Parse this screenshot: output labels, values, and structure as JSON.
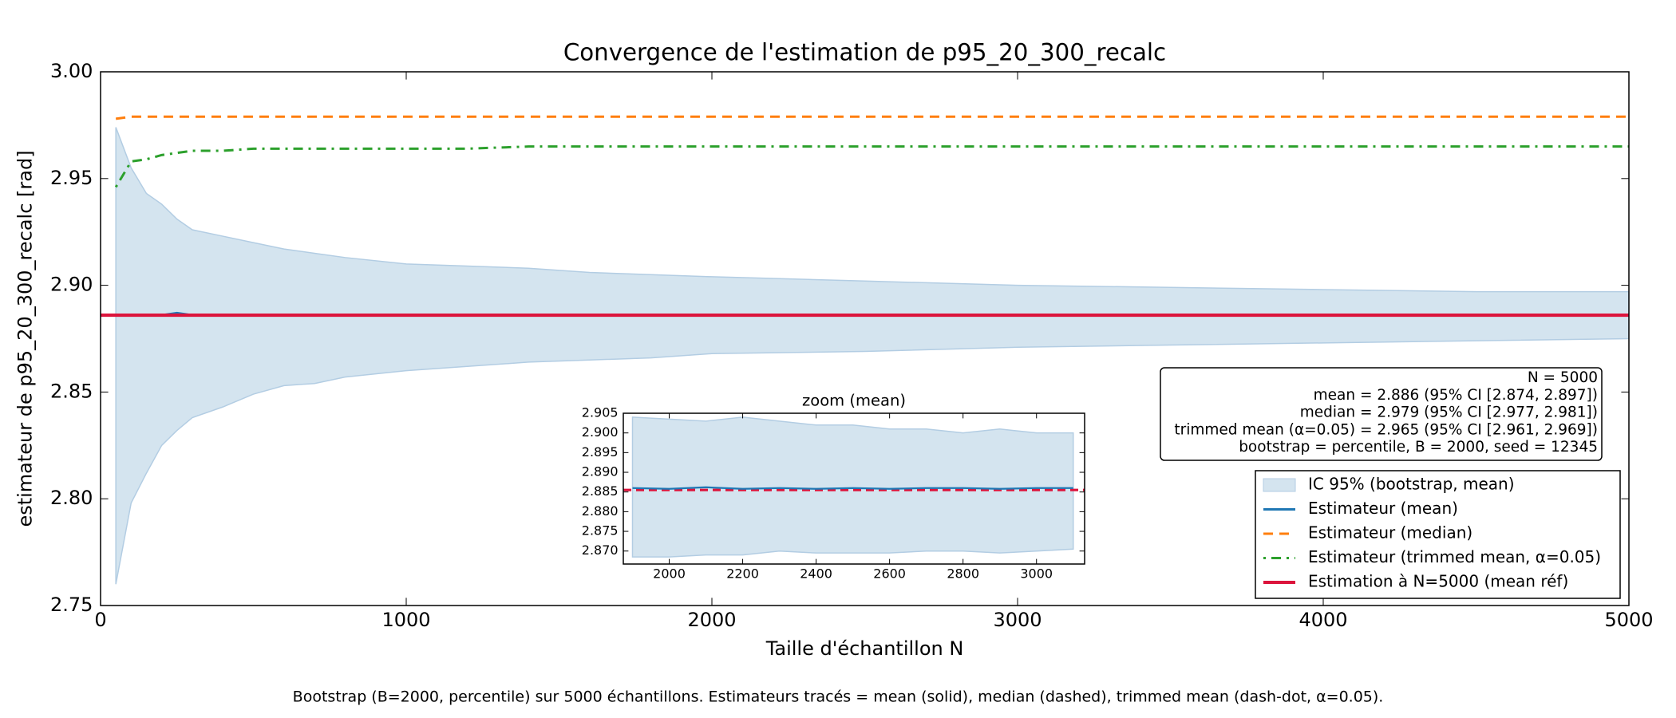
{
  "chart_data": [
    {
      "type": "line",
      "title": "Convergence de l'estimation de p95_20_300_recalc",
      "xlabel": "Taille d'échantillon N",
      "ylabel": "estimateur de p95_20_300_recalc [rad]",
      "xlim": [
        0,
        5000
      ],
      "ylim": [
        2.75,
        3.0
      ],
      "xticks": [
        0,
        1000,
        2000,
        3000,
        4000,
        5000
      ],
      "yticks": [
        {
          "value": 3.0,
          "label": "3.00"
        },
        2.95,
        {
          "value": 2.9,
          "label": "2.90"
        },
        2.85,
        {
          "value": 2.8,
          "label": "2.80"
        },
        2.75
      ],
      "x": [
        50,
        100,
        150,
        200,
        250,
        300,
        400,
        500,
        600,
        700,
        800,
        1000,
        1200,
        1400,
        1600,
        1800,
        2000,
        2500,
        3000,
        3500,
        4000,
        4500,
        5000
      ],
      "series": [
        {
          "name": "IC 95% (bootstrap, mean)",
          "color": "#d4e4ef",
          "style": "band",
          "values": [
            2.974,
            2.955,
            2.943,
            2.938,
            2.931,
            2.926,
            2.923,
            2.92,
            2.917,
            2.915,
            2.913,
            2.91,
            2.909,
            2.908,
            2.906,
            2.905,
            2.904,
            2.902,
            2.9,
            2.899,
            2.898,
            2.897,
            2.897
          ],
          "lower": [
            2.76,
            2.798,
            2.812,
            2.825,
            2.832,
            2.838,
            2.843,
            2.849,
            2.853,
            2.854,
            2.857,
            2.86,
            2.862,
            2.864,
            2.865,
            2.866,
            2.868,
            2.869,
            2.871,
            2.872,
            2.873,
            2.874,
            2.875
          ]
        },
        {
          "name": "Estimateur (mean)",
          "color": "#1f77b4",
          "style": "solid",
          "values": [
            2.886,
            2.886,
            2.886,
            2.886,
            2.887,
            2.886,
            2.886,
            2.886,
            2.886,
            2.886,
            2.886,
            2.886,
            2.886,
            2.886,
            2.886,
            2.886,
            2.886,
            2.886,
            2.886,
            2.886,
            2.886,
            2.886,
            2.886
          ]
        },
        {
          "name": "Estimateur (median)",
          "color": "#ff7f0e",
          "style": "dashed",
          "values": [
            2.978,
            2.979,
            2.979,
            2.979,
            2.979,
            2.979,
            2.979,
            2.979,
            2.979,
            2.979,
            2.979,
            2.979,
            2.979,
            2.979,
            2.979,
            2.979,
            2.979,
            2.979,
            2.979,
            2.979,
            2.979,
            2.979,
            2.979
          ]
        },
        {
          "name": "Estimateur (trimmed mean, α=0.05)",
          "color": "#2ca02c",
          "style": "dashdot",
          "values": [
            2.946,
            2.958,
            2.959,
            2.961,
            2.962,
            2.963,
            2.963,
            2.964,
            2.964,
            2.964,
            2.964,
            2.964,
            2.964,
            2.965,
            2.965,
            2.965,
            2.965,
            2.965,
            2.965,
            2.965,
            2.965,
            2.965,
            2.965
          ]
        },
        {
          "name": "Estimation à N=5000 (mean réf)",
          "color": "#dc143c",
          "style": "hline",
          "value": 2.886
        }
      ],
      "annotation": [
        "N = 5000",
        "mean = 2.886  (95% CI [2.874, 2.897])",
        "median = 2.979  (95% CI [2.977, 2.981])",
        "trimmed mean (α=0.05) = 2.965  (95% CI [2.961, 2.969])",
        "bootstrap = percentile, B = 2000, seed = 12345"
      ]
    },
    {
      "type": "line",
      "title": "zoom (mean)",
      "xlim": [
        1875,
        3131
      ],
      "ylim": [
        2.8667,
        2.905
      ],
      "xticks": [
        2000,
        2200,
        2400,
        2600,
        2800,
        3000
      ],
      "yticks": [
        2.905,
        {
          "value": 2.9,
          "label": "2.900"
        },
        2.895,
        {
          "value": 2.89,
          "label": "2.890"
        },
        2.885,
        {
          "value": 2.88,
          "label": "2.880"
        },
        2.875,
        {
          "value": 2.87,
          "label": "2.870"
        }
      ],
      "x": [
        1900,
        2000,
        2100,
        2200,
        2300,
        2400,
        2500,
        2600,
        2700,
        2800,
        2900,
        3000,
        3100
      ],
      "series": [
        {
          "color": "#d4e4ef",
          "style": "band",
          "values": [
            2.904,
            2.9035,
            2.903,
            2.904,
            2.903,
            2.902,
            2.902,
            2.901,
            2.901,
            2.9,
            2.901,
            2.9,
            2.9
          ],
          "lower": [
            2.8685,
            2.8685,
            2.869,
            2.869,
            2.87,
            2.8695,
            2.8695,
            2.8695,
            2.87,
            2.87,
            2.8695,
            2.87,
            2.8705
          ]
        },
        {
          "color": "#dc143c",
          "style": "hline-dashed",
          "value": 2.8855
        },
        {
          "color": "#1f77b4",
          "style": "solid",
          "values": [
            2.886,
            2.8858,
            2.8862,
            2.8858,
            2.886,
            2.8858,
            2.886,
            2.8858,
            2.886,
            2.886,
            2.8858,
            2.886,
            2.886
          ]
        }
      ]
    }
  ],
  "caption": "Bootstrap (B=2000, percentile) sur 5000 échantillons. Estimateurs tracés = mean (solid), median (dashed), trimmed mean (dash-dot, α=0.05)."
}
